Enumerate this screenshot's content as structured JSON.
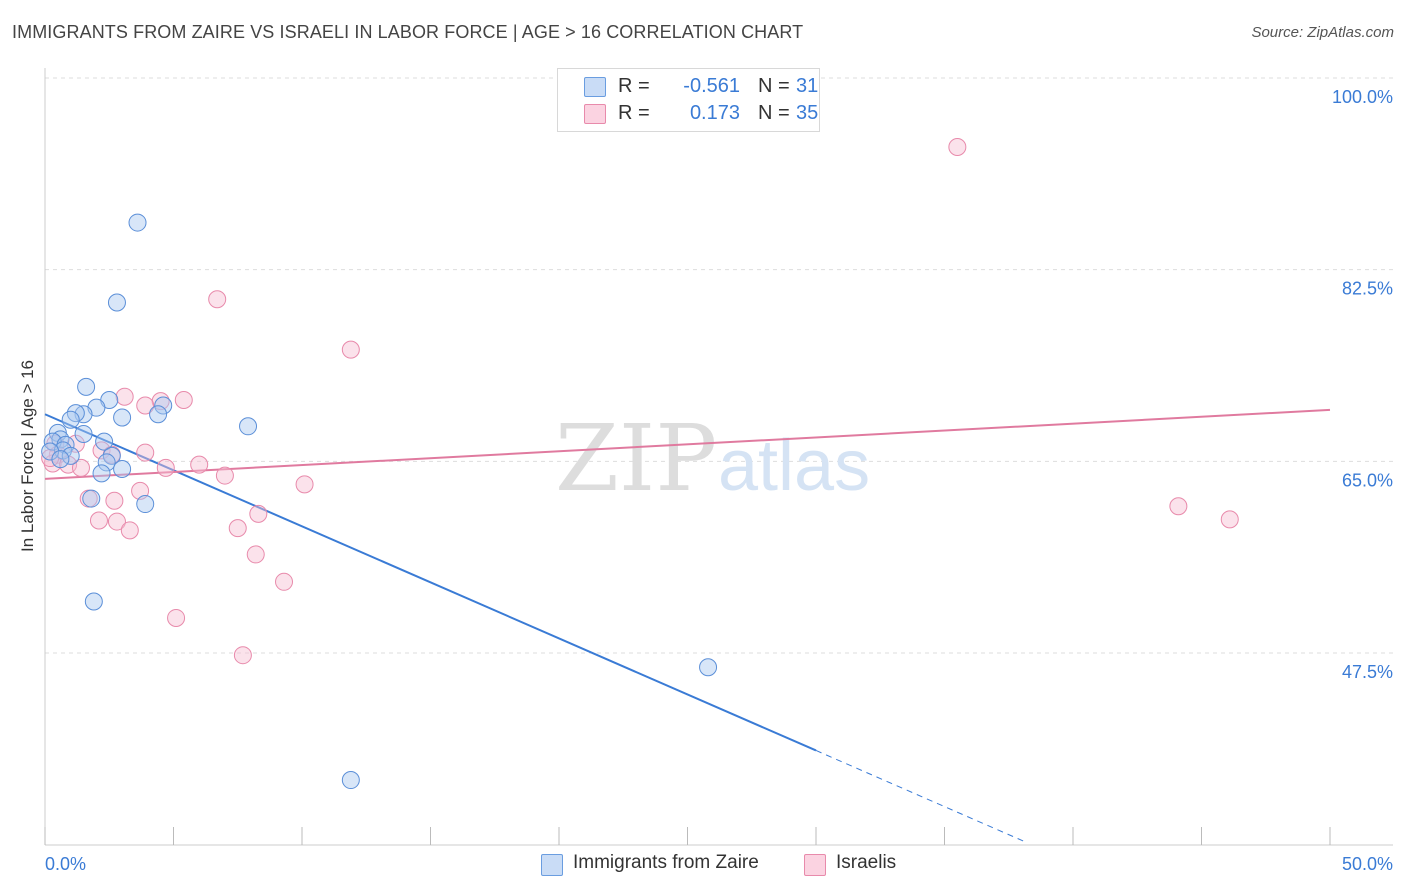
{
  "header": {
    "title": "IMMIGRANTS FROM ZAIRE VS ISRAELI IN LABOR FORCE | AGE > 16 CORRELATION CHART",
    "source": "Source: ZipAtlas.com"
  },
  "legend": {
    "rows": [
      {
        "r_label": "R =",
        "r_value": "-0.561",
        "n_label": "N =",
        "n_value": "31",
        "color": "#a9c8f0",
        "border": "#6a9de0"
      },
      {
        "r_label": "R =",
        "r_value": "0.173",
        "n_label": "N =",
        "n_value": "35",
        "color": "#f7bfd2",
        "border": "#e88aab"
      }
    ]
  },
  "bottom_legend": {
    "items": [
      {
        "label": "Immigrants from Zaire",
        "color": "#a9c8f0",
        "border": "#6a9de0"
      },
      {
        "label": "Israelis",
        "color": "#f7bfd2",
        "border": "#e88aab"
      }
    ]
  },
  "watermark": {
    "part1": "ZIP",
    "part2": "atlas"
  },
  "chart_data": {
    "type": "scatter",
    "title": "IMMIGRANTS FROM ZAIRE VS ISRAELI IN LABOR FORCE | AGE > 16 CORRELATION CHART",
    "xlabel": "",
    "ylabel": "In Labor Force | Age > 16",
    "xlim": [
      0,
      50
    ],
    "ylim": [
      30,
      102
    ],
    "x_tick_labels": [
      {
        "value": 0,
        "label": "0.0%"
      },
      {
        "value": 50,
        "label": "50.0%"
      }
    ],
    "y_tick_labels": [
      {
        "value": 100,
        "label": "100.0%"
      },
      {
        "value": 82.5,
        "label": "82.5%"
      },
      {
        "value": 65,
        "label": "65.0%"
      },
      {
        "value": 47.5,
        "label": "47.5%"
      }
    ],
    "grid": "horizontal dashed",
    "legend_position": "top-center",
    "colors": {
      "zaire": "#3a7bd5",
      "israelis": "#e07a9f",
      "tick_text": "#3a7bd5"
    },
    "series": [
      {
        "name": "Immigrants from Zaire",
        "r": -0.561,
        "n": 31,
        "trend": {
          "x0": 0,
          "y0": 69.3,
          "x1": 30,
          "y1": 38.6,
          "dash_to_x": 38.1,
          "dash_to_y": 30.3
        },
        "points": [
          [
            3.6,
            86.8
          ],
          [
            2.8,
            79.5
          ],
          [
            1.6,
            71.8
          ],
          [
            2.5,
            70.6
          ],
          [
            4.6,
            70.1
          ],
          [
            2.0,
            69.9
          ],
          [
            1.5,
            69.3
          ],
          [
            1.2,
            69.4
          ],
          [
            1.0,
            68.8
          ],
          [
            3.0,
            69.0
          ],
          [
            7.9,
            68.2
          ],
          [
            0.5,
            67.6
          ],
          [
            1.5,
            67.5
          ],
          [
            0.6,
            67.0
          ],
          [
            0.3,
            66.8
          ],
          [
            0.8,
            66.5
          ],
          [
            2.3,
            66.8
          ],
          [
            4.4,
            69.3
          ],
          [
            0.7,
            66.0
          ],
          [
            1.0,
            65.5
          ],
          [
            2.6,
            65.5
          ],
          [
            2.4,
            64.9
          ],
          [
            0.2,
            65.9
          ],
          [
            3.0,
            64.3
          ],
          [
            2.2,
            63.9
          ],
          [
            1.8,
            61.6
          ],
          [
            3.9,
            61.1
          ],
          [
            1.9,
            52.2
          ],
          [
            25.8,
            46.2
          ],
          [
            11.9,
            35.9
          ],
          [
            0.6,
            65.2
          ]
        ]
      },
      {
        "name": "Israelis",
        "r": 0.173,
        "n": 35,
        "trend": {
          "x0": 0,
          "y0": 63.4,
          "x1": 50,
          "y1": 69.7
        },
        "points": [
          [
            35.5,
            93.7
          ],
          [
            6.7,
            79.8
          ],
          [
            11.9,
            75.2
          ],
          [
            3.1,
            70.9
          ],
          [
            4.5,
            70.5
          ],
          [
            5.4,
            70.6
          ],
          [
            3.9,
            70.1
          ],
          [
            0.4,
            66.6
          ],
          [
            1.2,
            66.6
          ],
          [
            0.5,
            65.6
          ],
          [
            2.2,
            66.0
          ],
          [
            2.6,
            65.6
          ],
          [
            3.9,
            65.8
          ],
          [
            6.0,
            64.7
          ],
          [
            4.7,
            64.4
          ],
          [
            0.3,
            64.8
          ],
          [
            0.9,
            64.7
          ],
          [
            1.4,
            64.4
          ],
          [
            7.0,
            63.7
          ],
          [
            10.1,
            62.9
          ],
          [
            3.7,
            62.3
          ],
          [
            2.7,
            61.4
          ],
          [
            1.7,
            61.6
          ],
          [
            8.3,
            60.2
          ],
          [
            2.1,
            59.6
          ],
          [
            2.8,
            59.5
          ],
          [
            3.3,
            58.7
          ],
          [
            7.5,
            58.9
          ],
          [
            44.1,
            60.9
          ],
          [
            46.1,
            59.7
          ],
          [
            8.2,
            56.5
          ],
          [
            9.3,
            54.0
          ],
          [
            5.1,
            50.7
          ],
          [
            7.7,
            47.3
          ],
          [
            0.2,
            65.3
          ]
        ]
      }
    ]
  }
}
